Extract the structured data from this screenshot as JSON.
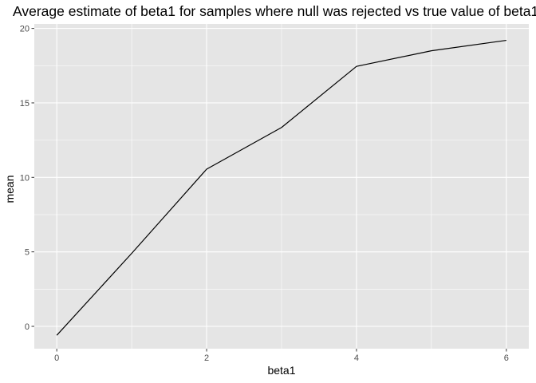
{
  "chart_data": {
    "type": "line",
    "title": "Average estimate of beta1  for samples where null was rejected vs true value of beta1",
    "xlabel": "beta1",
    "ylabel": "mean",
    "xlim": [
      -0.3,
      6.3
    ],
    "ylim": [
      -1.5,
      20.3
    ],
    "x_ticks": [
      0,
      2,
      4,
      6
    ],
    "y_ticks": [
      0,
      5,
      10,
      15,
      20
    ],
    "x_tick_labels": [
      "0",
      "2",
      "4",
      "6"
    ],
    "y_tick_labels": [
      "0",
      "5",
      "10",
      "15",
      "20"
    ],
    "grid": true,
    "legend": "none",
    "series": [
      {
        "x": [
          0,
          1,
          2,
          3,
          4,
          5,
          6
        ],
        "y": [
          -0.6,
          4.9,
          10.55,
          13.35,
          17.45,
          18.5,
          19.2
        ],
        "color": "#000000"
      }
    ],
    "colors": {
      "panel_background": "#e5e5e5",
      "grid_major": "#ffffff",
      "tick_label": "#4d4d4d",
      "line": "#000000"
    }
  }
}
